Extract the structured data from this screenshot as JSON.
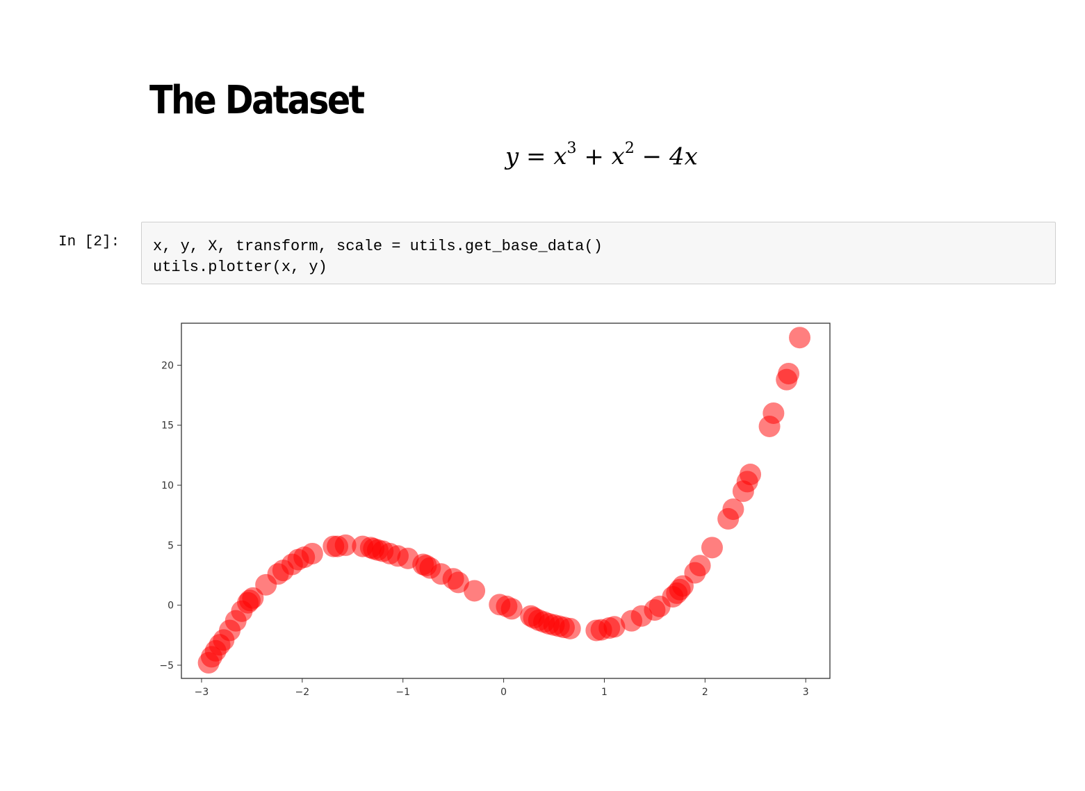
{
  "markdown": {
    "heading": "The Dataset",
    "equation": {
      "lhs": "y",
      "eq": "=",
      "t1_base": "x",
      "t1_exp": "3",
      "plus": "+",
      "t2_base": "x",
      "t2_exp": "2",
      "minus": "−",
      "t3": "4x"
    }
  },
  "code_cell": {
    "prompt": "In [2]:",
    "lines": [
      "x, y, X, transform, scale = utils.get_base_data()",
      "utils.plotter(x, y)"
    ]
  },
  "colors": {
    "point": "#ff0000",
    "axis": "#333333",
    "cell_bg": "#f7f7f7",
    "cell_border": "#cfcfcf"
  },
  "chart_data": {
    "type": "scatter",
    "title": "",
    "xlabel": "",
    "ylabel": "",
    "xlim": [
      -3.2,
      3.24
    ],
    "ylim": [
      -6.1,
      23.5
    ],
    "xticks": [
      -3,
      -2,
      -1,
      0,
      1,
      2,
      3
    ],
    "xtick_labels": [
      "−3",
      "−2",
      "−1",
      "0",
      "1",
      "2",
      "3"
    ],
    "yticks": [
      -5,
      0,
      5,
      10,
      15,
      20
    ],
    "ytick_labels": [
      "−5",
      "0",
      "5",
      "10",
      "15",
      "20"
    ],
    "grid": false,
    "legend": "none",
    "marker": "circle",
    "alpha": 0.5,
    "series": [
      {
        "x": [
          -2.93,
          -2.9,
          -2.86,
          -2.82,
          -2.78,
          -2.72,
          -2.66,
          -2.6,
          -2.54,
          -2.52,
          -2.49,
          -2.36,
          -2.24,
          -2.19,
          -2.1,
          -2.04,
          -1.98,
          -1.9,
          -1.69,
          -1.65,
          -1.57,
          -1.4,
          -1.32,
          -1.29,
          -1.25,
          -1.2,
          -1.13,
          -1.05,
          -0.95,
          -0.8,
          -0.77,
          -0.73,
          -0.62,
          -0.5,
          -0.45,
          -0.29,
          -0.04,
          0.03,
          0.08,
          0.27,
          0.3,
          0.35,
          0.4,
          0.45,
          0.5,
          0.55,
          0.6,
          0.66,
          0.92,
          0.97,
          1.05,
          1.1,
          1.27,
          1.37,
          1.5,
          1.55,
          1.68,
          1.72,
          1.75,
          1.78,
          1.9,
          1.95,
          2.07,
          2.23,
          2.28,
          2.38,
          2.42,
          2.45,
          2.64,
          2.68,
          2.81,
          2.83,
          2.94
        ],
        "y": [
          -4.8,
          -4.3,
          -3.8,
          -3.3,
          -2.9,
          -2.1,
          -1.3,
          -0.5,
          0.2,
          0.4,
          0.6,
          1.7,
          2.6,
          2.9,
          3.4,
          3.8,
          4.0,
          4.3,
          4.9,
          4.9,
          5.0,
          4.9,
          4.8,
          4.7,
          4.6,
          4.5,
          4.3,
          4.1,
          3.9,
          3.4,
          3.3,
          3.1,
          2.6,
          2.2,
          1.9,
          1.2,
          0.05,
          -0.1,
          -0.3,
          -0.9,
          -1.05,
          -1.25,
          -1.4,
          -1.55,
          -1.65,
          -1.75,
          -1.85,
          -1.95,
          -2.1,
          -2.05,
          -1.9,
          -1.8,
          -1.3,
          -0.9,
          -0.4,
          -0.1,
          0.7,
          1.0,
          1.3,
          1.6,
          2.7,
          3.3,
          4.8,
          7.2,
          8.0,
          9.5,
          10.3,
          10.9,
          14.9,
          16.0,
          18.8,
          19.3,
          22.3
        ]
      }
    ]
  }
}
